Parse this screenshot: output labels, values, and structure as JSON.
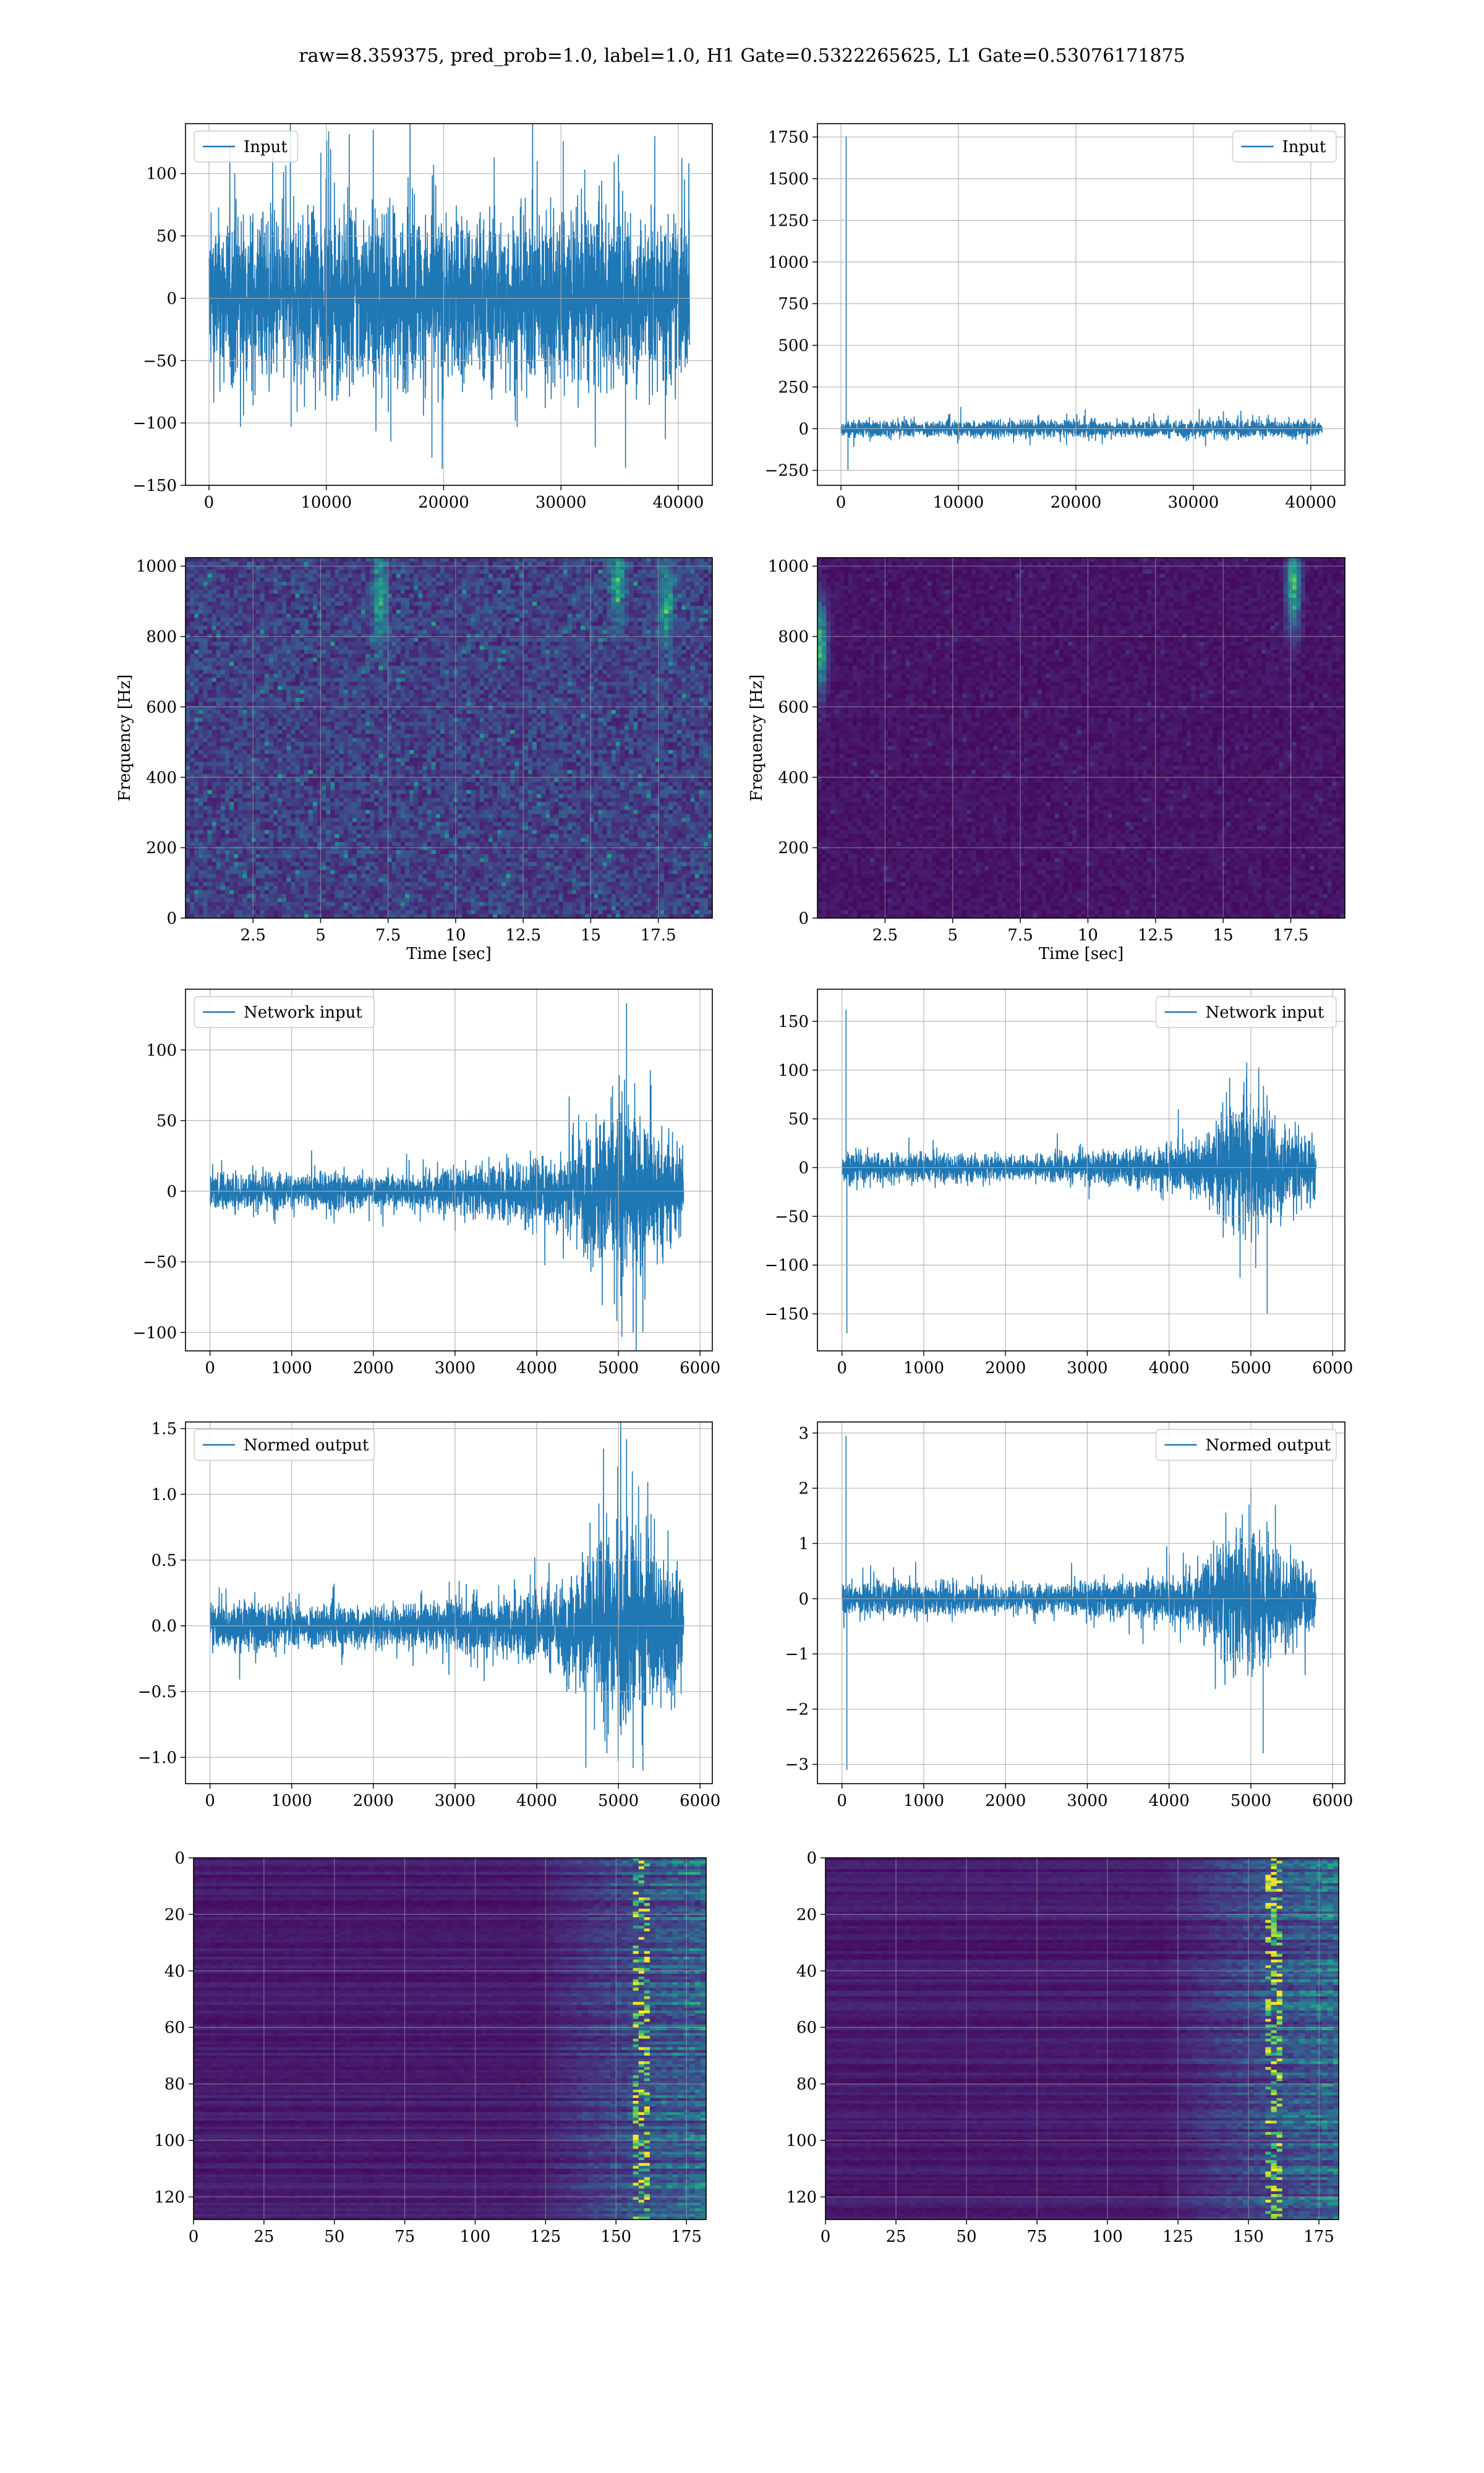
{
  "title": "raw=8.359375, pred_prob=1.0, label=1.0, H1 Gate=0.5322265625, L1 Gate=0.53076171875",
  "colors": {
    "line": "#1f77b4",
    "grid": "#b0b0b0",
    "viridis_low": "#440154",
    "viridis_high": "#fde725"
  },
  "chart_data": [
    {
      "type": "line",
      "panel": "row1-left",
      "legend": "Input",
      "legend_loc": "upper-left",
      "grid": true,
      "xlim": [
        -2000,
        42900
      ],
      "ylim": [
        -150,
        140
      ],
      "xticks": [
        0,
        10000,
        20000,
        30000,
        40000
      ],
      "yticks": [
        -150,
        -100,
        -50,
        0,
        50,
        100
      ],
      "signal": {
        "n": 40960,
        "envelope": [
          [
            0,
            75
          ],
          [
            4096,
            78
          ],
          [
            8192,
            76
          ],
          [
            12288,
            80
          ],
          [
            16384,
            78
          ],
          [
            20480,
            76
          ],
          [
            24576,
            77
          ],
          [
            28672,
            79
          ],
          [
            32768,
            80
          ],
          [
            36864,
            76
          ],
          [
            40960,
            78
          ]
        ],
        "spikes": [
          [
            14000,
            135
          ],
          [
            15500,
            -115
          ],
          [
            19000,
            -128
          ],
          [
            24300,
            113
          ],
          [
            30200,
            126
          ],
          [
            34900,
            115
          ],
          [
            35500,
            -136
          ],
          [
            38000,
            130
          ],
          [
            38900,
            -113
          ],
          [
            7000,
            -103
          ],
          [
            2200,
            100
          ]
        ]
      }
    },
    {
      "type": "line",
      "panel": "row1-right",
      "legend": "Input",
      "legend_loc": "upper-right",
      "grid": true,
      "xlim": [
        -2000,
        42900
      ],
      "ylim": [
        -340,
        1830
      ],
      "xticks": [
        0,
        10000,
        20000,
        30000,
        40000
      ],
      "yticks": [
        -250,
        0,
        250,
        500,
        750,
        1000,
        1250,
        1500,
        1750
      ],
      "signal": {
        "n": 40960,
        "envelope": [
          [
            0,
            55
          ],
          [
            4096,
            58
          ],
          [
            8192,
            56
          ],
          [
            12288,
            60
          ],
          [
            16384,
            58
          ],
          [
            20480,
            57
          ],
          [
            24576,
            57
          ],
          [
            28672,
            58
          ],
          [
            32768,
            60
          ],
          [
            36864,
            58
          ],
          [
            40960,
            60
          ]
        ],
        "spikes": [
          [
            450,
            1755
          ],
          [
            600,
            -250
          ],
          [
            10200,
            130
          ],
          [
            20800,
            115
          ],
          [
            30500,
            118
          ],
          [
            39700,
            -95
          ]
        ]
      }
    },
    {
      "type": "heatmap",
      "panel": "row2-left",
      "subtype": "spectrogram",
      "ylabel": "Frequency [Hz]",
      "xlabel": "Time [sec]",
      "grid": true,
      "xlim": [
        0,
        19.5
      ],
      "ylim": [
        0,
        1024
      ],
      "xticks": [
        2.5,
        5.0,
        7.5,
        10.0,
        12.5,
        15.0,
        17.5
      ],
      "yticks": [
        0,
        200,
        400,
        600,
        800,
        1000
      ],
      "bright": [
        [
          17.8,
          120
        ],
        [
          7.2,
          110
        ],
        [
          16.0,
          60
        ]
      ]
    },
    {
      "type": "heatmap",
      "panel": "row2-right",
      "subtype": "spectrogram",
      "ylabel": "Frequency [Hz]",
      "xlabel": "Time [sec]",
      "grid": true,
      "xlim": [
        0,
        19.5
      ],
      "ylim": [
        0,
        1024
      ],
      "xticks": [
        2.5,
        5.0,
        7.5,
        10.0,
        12.5,
        15.0,
        17.5
      ],
      "yticks": [
        0,
        200,
        400,
        600,
        800,
        1000
      ],
      "bright": [
        [
          0.1,
          250
        ],
        [
          17.6,
          80
        ]
      ]
    },
    {
      "type": "line",
      "panel": "row3-left",
      "legend": "Network input",
      "legend_loc": "upper-left",
      "grid": true,
      "xlim": [
        -300,
        6150
      ],
      "ylim": [
        -113,
        143
      ],
      "xticks": [
        0,
        1000,
        2000,
        3000,
        4000,
        5000,
        6000
      ],
      "yticks": [
        -100,
        -50,
        0,
        50,
        100
      ],
      "signal": {
        "n": 5800,
        "envelope": [
          [
            0,
            15
          ],
          [
            500,
            16
          ],
          [
            1000,
            14
          ],
          [
            1500,
            15
          ],
          [
            2000,
            13
          ],
          [
            2500,
            14
          ],
          [
            3000,
            17
          ],
          [
            3500,
            22
          ],
          [
            4000,
            28
          ],
          [
            4400,
            32
          ],
          [
            4700,
            55
          ],
          [
            5000,
            68
          ],
          [
            5300,
            62
          ],
          [
            5600,
            45
          ],
          [
            5780,
            40
          ],
          [
            5800,
            3
          ]
        ],
        "spikes": [
          [
            5100,
            133
          ],
          [
            5180,
            -100
          ],
          [
            5300,
            -100
          ],
          [
            4950,
            -80
          ],
          [
            5400,
            75
          ]
        ]
      }
    },
    {
      "type": "line",
      "panel": "row3-right",
      "legend": "Network input",
      "legend_loc": "upper-right",
      "grid": true,
      "xlim": [
        -300,
        6150
      ],
      "ylim": [
        -188,
        183
      ],
      "xticks": [
        0,
        1000,
        2000,
        3000,
        4000,
        5000,
        6000
      ],
      "yticks": [
        -150,
        -100,
        -50,
        0,
        50,
        100,
        150
      ],
      "signal": {
        "n": 5800,
        "envelope": [
          [
            0,
            18
          ],
          [
            500,
            17
          ],
          [
            1000,
            16
          ],
          [
            1500,
            17
          ],
          [
            2000,
            14
          ],
          [
            2500,
            15
          ],
          [
            3000,
            18
          ],
          [
            3500,
            22
          ],
          [
            4000,
            26
          ],
          [
            4400,
            32
          ],
          [
            4700,
            70
          ],
          [
            5000,
            80
          ],
          [
            5300,
            60
          ],
          [
            5600,
            45
          ],
          [
            5780,
            40
          ],
          [
            5800,
            3
          ]
        ],
        "spikes": [
          [
            50,
            162
          ],
          [
            60,
            -170
          ],
          [
            5060,
            -103
          ],
          [
            5200,
            -150
          ],
          [
            4950,
            108
          ]
        ]
      }
    },
    {
      "type": "line",
      "panel": "row4-left",
      "legend": "Normed output",
      "legend_loc": "upper-left",
      "grid": true,
      "xlim": [
        -300,
        6150
      ],
      "ylim": [
        -1.2,
        1.55
      ],
      "xticks": [
        0,
        1000,
        2000,
        3000,
        4000,
        5000,
        6000
      ],
      "yticks": [
        -1.0,
        -0.5,
        0.0,
        0.5,
        1.0,
        1.5
      ],
      "signal": {
        "n": 5800,
        "envelope": [
          [
            0,
            0.2
          ],
          [
            500,
            0.21
          ],
          [
            1000,
            0.19
          ],
          [
            1500,
            0.2
          ],
          [
            2000,
            0.17
          ],
          [
            2500,
            0.18
          ],
          [
            3000,
            0.22
          ],
          [
            3500,
            0.27
          ],
          [
            4000,
            0.32
          ],
          [
            4400,
            0.4
          ],
          [
            4700,
            0.7
          ],
          [
            5000,
            0.9
          ],
          [
            5300,
            0.8
          ],
          [
            5600,
            0.6
          ],
          [
            5780,
            0.5
          ],
          [
            5800,
            0.03
          ]
        ],
        "spikes": [
          [
            5100,
            1.42
          ],
          [
            5180,
            -1.08
          ],
          [
            5300,
            -1.1
          ],
          [
            5400,
            0.85
          ]
        ]
      }
    },
    {
      "type": "line",
      "panel": "row4-right",
      "legend": "Normed output",
      "legend_loc": "upper-right",
      "grid": true,
      "xlim": [
        -300,
        6150
      ],
      "ylim": [
        -3.35,
        3.2
      ],
      "xticks": [
        0,
        1000,
        2000,
        3000,
        4000,
        5000,
        6000
      ],
      "yticks": [
        -3,
        -2,
        -1,
        0,
        1,
        2,
        3
      ],
      "signal": {
        "n": 5800,
        "envelope": [
          [
            0,
            0.35
          ],
          [
            500,
            0.33
          ],
          [
            1000,
            0.3
          ],
          [
            1500,
            0.32
          ],
          [
            2000,
            0.28
          ],
          [
            2500,
            0.3
          ],
          [
            3000,
            0.34
          ],
          [
            3500,
            0.4
          ],
          [
            4000,
            0.5
          ],
          [
            4400,
            0.6
          ],
          [
            4700,
            1.3
          ],
          [
            5000,
            1.5
          ],
          [
            5300,
            1.1
          ],
          [
            5600,
            0.8
          ],
          [
            5780,
            0.7
          ],
          [
            5800,
            0.05
          ]
        ],
        "spikes": [
          [
            50,
            2.95
          ],
          [
            60,
            -3.1
          ],
          [
            5000,
            2.0
          ],
          [
            5150,
            -2.8
          ],
          [
            5300,
            1.7
          ]
        ]
      }
    },
    {
      "type": "heatmap",
      "panel": "row5-left",
      "grid": true,
      "xlim": [
        0,
        182
      ],
      "ylim": [
        128,
        0
      ],
      "xticks": [
        0,
        25,
        50,
        75,
        100,
        125,
        150,
        175
      ],
      "yticks": [
        0,
        20,
        40,
        60,
        80,
        100,
        120
      ],
      "activity_start": 120,
      "hot_column": 158
    },
    {
      "type": "heatmap",
      "panel": "row5-right",
      "grid": true,
      "xlim": [
        0,
        182
      ],
      "ylim": [
        128,
        0
      ],
      "xticks": [
        0,
        25,
        50,
        75,
        100,
        125,
        150,
        175
      ],
      "yticks": [
        0,
        20,
        40,
        60,
        80,
        100,
        120
      ],
      "activity_start": 118,
      "hot_column": 158
    }
  ]
}
